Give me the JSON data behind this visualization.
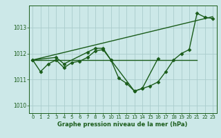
{
  "background_color": "#cce8e8",
  "grid_color": "#aacccc",
  "line_color": "#1a5c1a",
  "text_color": "#1a5c1a",
  "xlabel": "Graphe pression niveau de la mer (hPa)",
  "xlim": [
    -0.5,
    23.5
  ],
  "ylim": [
    1009.7,
    1013.85
  ],
  "yticks": [
    1010,
    1011,
    1012,
    1013
  ],
  "xticks": [
    0,
    1,
    2,
    3,
    4,
    5,
    6,
    7,
    8,
    9,
    10,
    11,
    12,
    13,
    14,
    15,
    16,
    17,
    18,
    19,
    20,
    21,
    22,
    23
  ],
  "series_zigzag": {
    "x": [
      0,
      1,
      2,
      3,
      4,
      5,
      6,
      7,
      8,
      9,
      10,
      11,
      12,
      13,
      14,
      15,
      16,
      17,
      18,
      19,
      20,
      21,
      22,
      23
    ],
    "y": [
      1011.75,
      1011.3,
      1011.6,
      1011.75,
      1011.45,
      1011.65,
      1011.7,
      1011.85,
      1012.1,
      1012.15,
      1011.75,
      1011.05,
      1010.85,
      1010.55,
      1010.65,
      1010.75,
      1010.9,
      1011.3,
      1011.75,
      1012.0,
      1012.15,
      1013.55,
      1013.4,
      1013.35
    ]
  },
  "series_diagonal": {
    "x": [
      0,
      23
    ],
    "y": [
      1011.75,
      1013.42
    ]
  },
  "series_flat": {
    "x": [
      0,
      4,
      7,
      8,
      9,
      10,
      16,
      19,
      21
    ],
    "y": [
      1011.75,
      1011.75,
      1011.75,
      1011.75,
      1011.75,
      1011.75,
      1011.75,
      1011.75,
      1011.75
    ]
  },
  "series_extra": {
    "x": [
      0,
      3,
      4,
      7,
      8,
      9,
      10,
      13,
      14,
      16
    ],
    "y": [
      1011.75,
      1011.85,
      1011.6,
      1012.05,
      1012.2,
      1012.2,
      1011.75,
      1010.55,
      1010.65,
      1011.8
    ]
  },
  "marker": "D",
  "markersize": 2.5,
  "linewidth": 1.0
}
